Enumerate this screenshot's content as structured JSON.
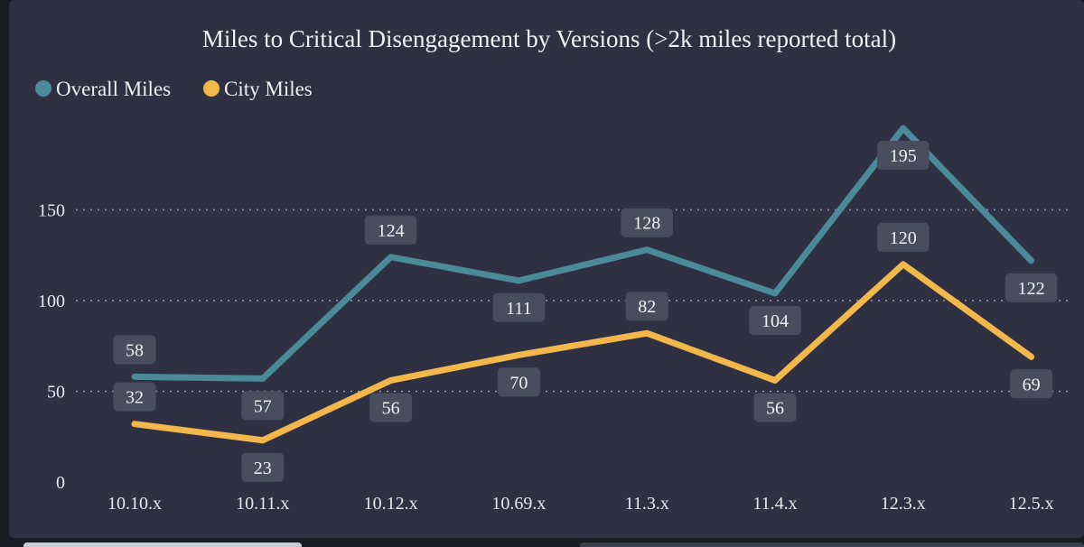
{
  "chart_data": {
    "type": "line",
    "title": "Miles to Critical Disengagement by Versions (>2k miles reported total)",
    "categories": [
      "10.10.x",
      "10.11.x",
      "10.12.x",
      "10.69.x",
      "11.3.x",
      "11.4.x",
      "12.3.x",
      "12.5.x"
    ],
    "series": [
      {
        "name": "Overall Miles",
        "color": "#4a8a99",
        "values": [
          58,
          57,
          124,
          111,
          128,
          104,
          195,
          122
        ]
      },
      {
        "name": "City Miles",
        "color": "#f2b84b",
        "values": [
          32,
          23,
          56,
          70,
          82,
          56,
          120,
          69
        ]
      }
    ],
    "yticks": [
      0,
      50,
      100,
      150
    ],
    "ylim": [
      0,
      200
    ],
    "grid": true,
    "legend": "top-left",
    "data_labels": true
  }
}
